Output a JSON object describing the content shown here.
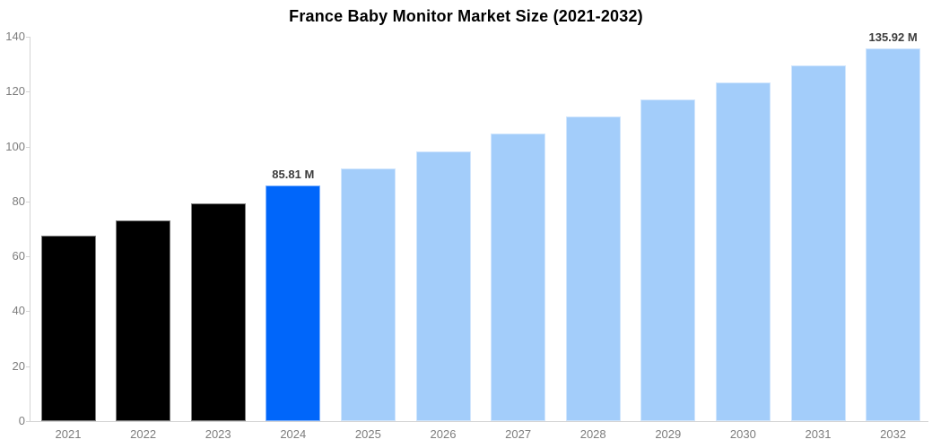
{
  "chart_data": {
    "type": "bar",
    "title": "France Baby Monitor Market Size (2021-2032)",
    "xlabel": "",
    "ylabel": "",
    "categories": [
      "2021",
      "2022",
      "2023",
      "2024",
      "2025",
      "2026",
      "2027",
      "2028",
      "2029",
      "2030",
      "2031",
      "2032"
    ],
    "values": [
      67.6,
      73.1,
      79.4,
      85.81,
      92.1,
      98.3,
      104.6,
      110.9,
      117.1,
      123.4,
      129.7,
      135.92
    ],
    "bar_labels": [
      "",
      "",
      "",
      "85.81 M",
      "",
      "",
      "",
      "",
      "",
      "",
      "",
      "135.92 M"
    ],
    "bar_colors": [
      "#000000",
      "#000000",
      "#000000",
      "#0066fa",
      "#a3cdfa",
      "#a3cdfa",
      "#a3cdfa",
      "#a3cdfa",
      "#a3cdfa",
      "#a3cdfa",
      "#a3cdfa",
      "#a3cdfa"
    ],
    "yticks": [
      0,
      20,
      40,
      60,
      80,
      100,
      120,
      140
    ],
    "ylim": [
      0,
      140
    ],
    "grid": false,
    "legend": "none",
    "colors": {
      "background": "#ffffff",
      "axis_line": "#d4d4d4",
      "tick_label": "#7d7d7d",
      "value_label": "#3c3c3c",
      "title": "#000000",
      "historical_bar": "#000000",
      "highlight_bar": "#0066fa",
      "forecast_bar": "#a3cdfa"
    }
  }
}
